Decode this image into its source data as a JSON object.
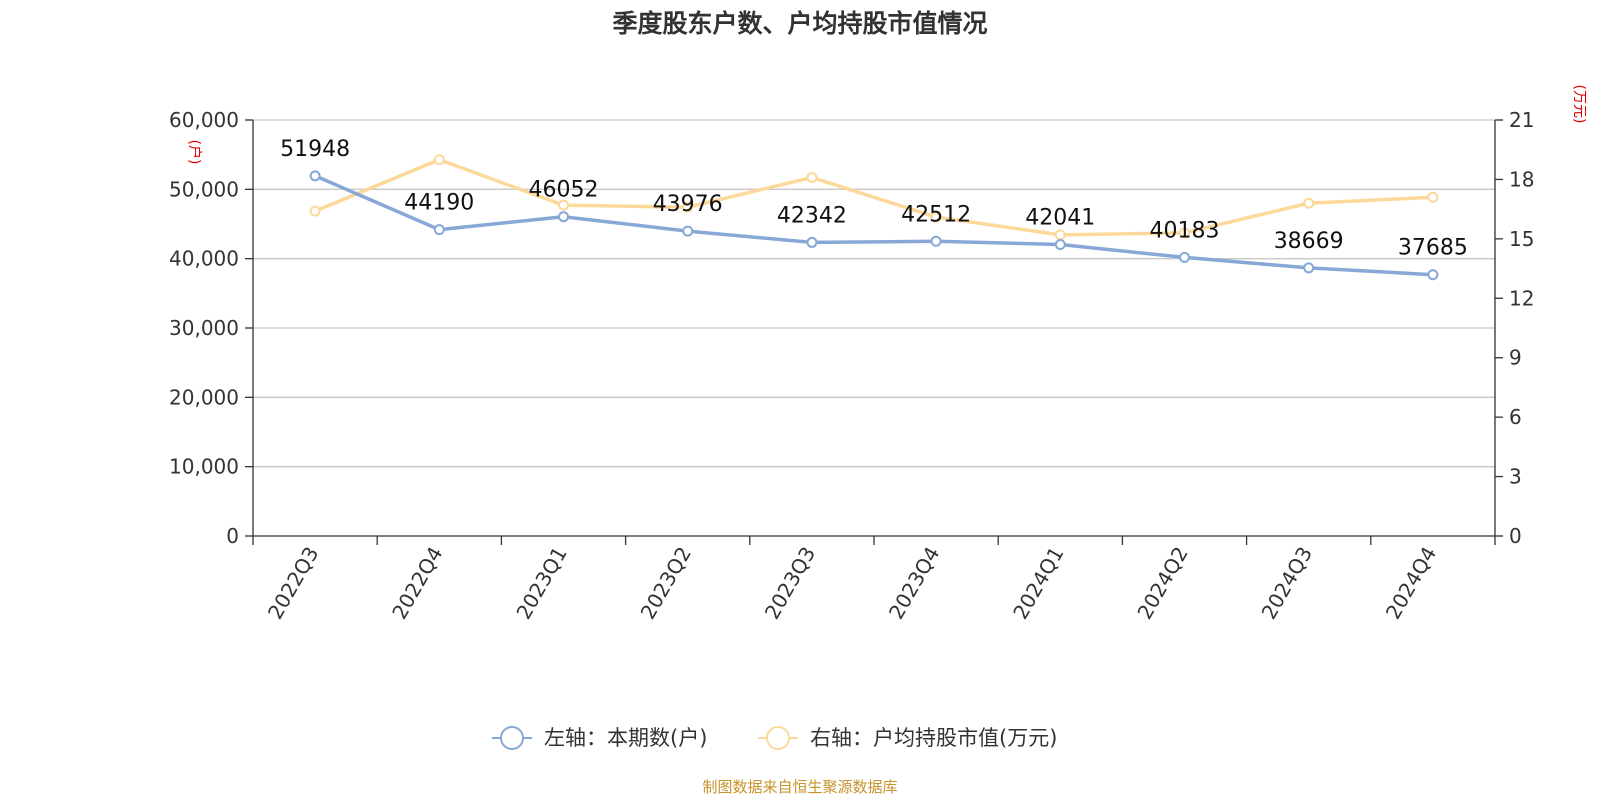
{
  "chart_data": {
    "type": "line",
    "title": "季度股东户数、户均持股市值情况",
    "categories": [
      "2022Q3",
      "2022Q4",
      "2023Q1",
      "2023Q2",
      "2023Q3",
      "2023Q4",
      "2024Q1",
      "2024Q2",
      "2024Q3",
      "2024Q4"
    ],
    "left_axis": {
      "unit": "(户)",
      "ylim": [
        0,
        60000
      ],
      "ticks": [
        "0",
        "10,000",
        "20,000",
        "30,000",
        "40,000",
        "50,000",
        "60,000"
      ]
    },
    "right_axis": {
      "unit": "(万元)",
      "ylim": [
        0,
        21
      ],
      "ticks": [
        "0",
        "3",
        "6",
        "9",
        "12",
        "15",
        "18",
        "21"
      ]
    },
    "series": [
      {
        "name": "左轴：本期数(户)",
        "axis": "left",
        "color": "#87a7d6",
        "values": [
          51948,
          44190,
          46052,
          43976,
          42342,
          42512,
          42041,
          40183,
          38669,
          37685
        ],
        "labels": [
          "51948",
          "44190",
          "46052",
          "43976",
          "42342",
          "42512",
          "42041",
          "40183",
          "38669",
          "37685"
        ]
      },
      {
        "name": "右轴：户均持股市值(万元)",
        "axis": "right",
        "color": "#fcd99a",
        "values": [
          16.4,
          19.0,
          16.7,
          16.6,
          18.1,
          16.1,
          15.2,
          15.3,
          16.8,
          17.1
        ]
      }
    ],
    "grid": true,
    "legend_position": "bottom"
  },
  "source": "制图数据来自恒生聚源数据库"
}
